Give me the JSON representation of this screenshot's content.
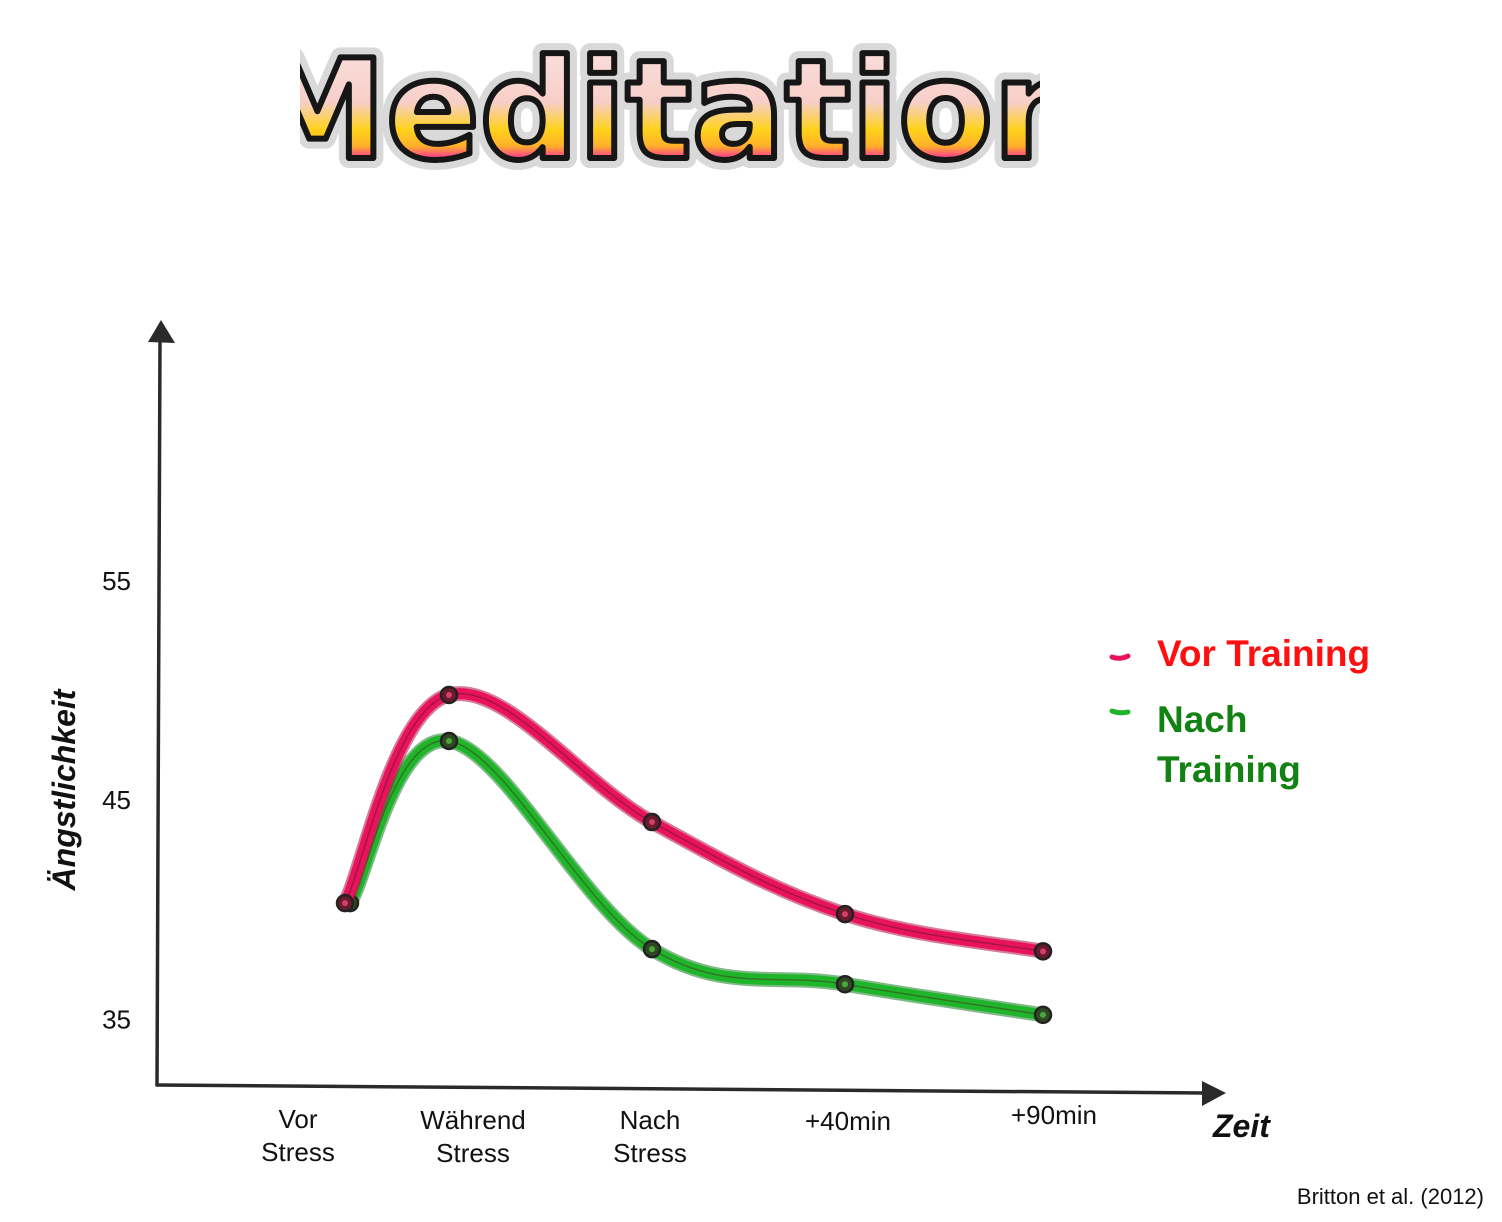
{
  "logo": {
    "text": "Meditation"
  },
  "chart_data": {
    "type": "line",
    "title": "",
    "xlabel": "Zeit",
    "ylabel": "Ängstlichkeit",
    "categories": [
      [
        "Vor",
        "Stress"
      ],
      [
        "Während",
        "Stress"
      ],
      [
        "Nach",
        "Stress"
      ],
      [
        "+40min"
      ],
      [
        "+90min"
      ]
    ],
    "y_ticks": [
      35,
      45,
      55
    ],
    "ylim": [
      32,
      66
    ],
    "grid": false,
    "legend_position": "right",
    "series": [
      {
        "name": "Vor Training",
        "values": [
          40.3,
          49.8,
          44.0,
          39.8,
          38.1
        ],
        "color": "#e8135a",
        "label_color": "#ff1010"
      },
      {
        "name": "Nach Training",
        "name_lines": [
          "Nach",
          "Training"
        ],
        "values": [
          40.3,
          47.7,
          38.2,
          36.6,
          35.2
        ],
        "color": "#1fb52b",
        "label_color": "#128212"
      }
    ]
  },
  "credit": "Britton et al. (2012)"
}
